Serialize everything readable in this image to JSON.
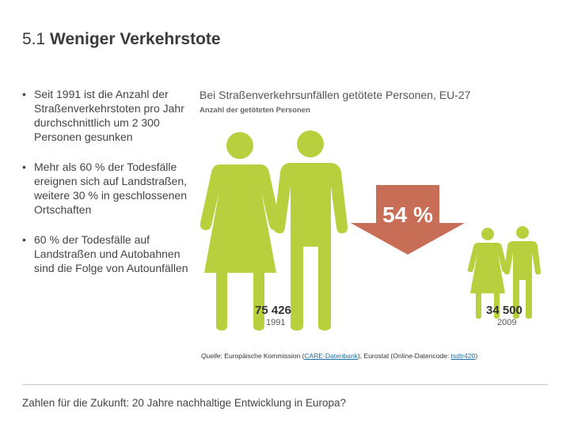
{
  "header": {
    "number": "5.1",
    "title": "Weniger Verkehrstote"
  },
  "bullets": [
    "Seit 1991 ist die Anzahl der Straßenverkehrstoten pro Jahr durchschnittlich um 2 300 Personen gesunken",
    "Mehr als 60 % der Todesfälle ereignen sich auf Landstraßen, weitere 30 % in geschlossenen Ortschaften",
    "60 % der Todesfälle auf Landstraßen und Autobahnen sind die Folge von Autounfällen"
  ],
  "infographic": {
    "title": "Bei Straßenverkehrsunfällen getötete Personen, EU-27",
    "subtitle": "Anzahl der getöteten Personen",
    "percent_label": "54 %",
    "colors": {
      "figure": "#b8cf3e",
      "arrow": "#c96e56",
      "arrow_text": "#ffffff"
    },
    "values": [
      {
        "value_label": "75 426",
        "year": "1991",
        "value": 75426
      },
      {
        "value_label": "34 500",
        "year": "2009",
        "value": 34500
      }
    ]
  },
  "source": {
    "label": "Quelle",
    "text_a": ": Europäische Kommission (",
    "link1": "CARE-Datenbank",
    "text_b": "), Eurostat (Online-Datencode: ",
    "link2": "tsdtr420",
    "text_c": ")"
  },
  "footer": {
    "text": "Zahlen für die Zukunft: 20 Jahre nachhaltige Entwicklung in Europa?"
  }
}
